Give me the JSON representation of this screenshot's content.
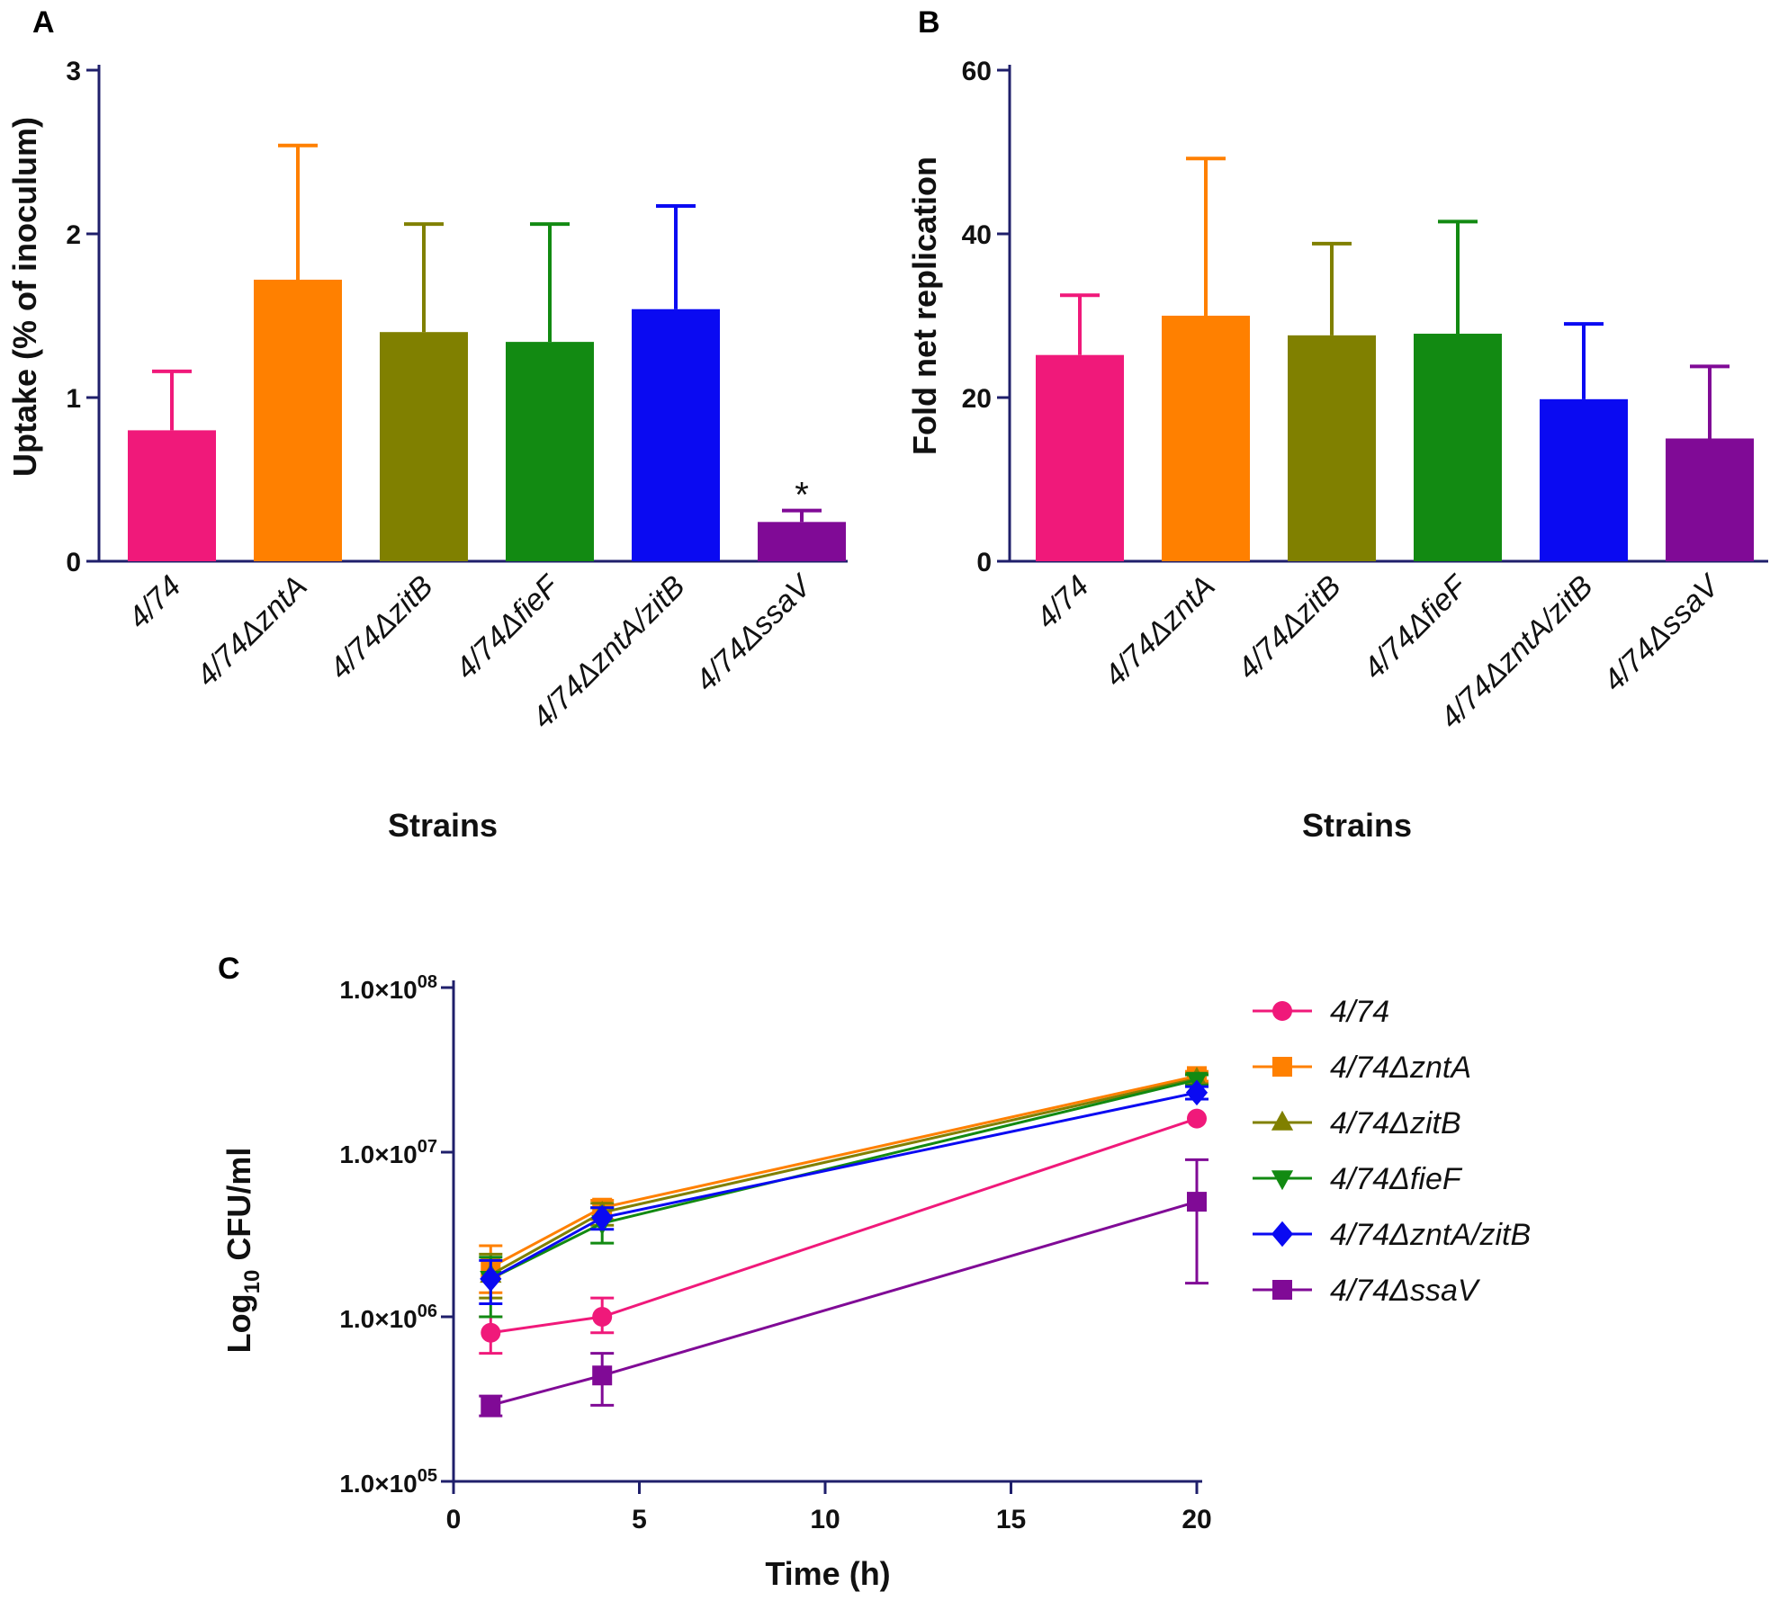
{
  "chart_data": [
    {
      "panel": "A",
      "type": "bar",
      "title": "",
      "xlabel": "Strains",
      "ylabel": "Uptake (% of inoculum)",
      "ylim": [
        0,
        3
      ],
      "yticks": [
        "0",
        "1",
        "2",
        "3"
      ],
      "categories": [
        "4/74",
        "4/74ΔzntA",
        "4/74ΔzitB",
        "4/74ΔfieF",
        "4/74ΔzntA/zitB",
        "4/74ΔssaV"
      ],
      "values": [
        0.8,
        1.72,
        1.4,
        1.34,
        1.54,
        0.24
      ],
      "errors": [
        0.36,
        0.82,
        0.66,
        0.72,
        0.63,
        0.07
      ],
      "colors": [
        "#f0197a",
        "#ff8000",
        "#808000",
        "#128a12",
        "#0a0af2",
        "#800a96"
      ],
      "annotations": [
        {
          "category": "4/74ΔssaV",
          "text": "*"
        }
      ]
    },
    {
      "panel": "B",
      "type": "bar",
      "title": "",
      "xlabel": "Strains",
      "ylabel": "Fold net replication",
      "ylim": [
        0,
        60
      ],
      "yticks": [
        "0",
        "20",
        "40",
        "60"
      ],
      "categories": [
        "4/74",
        "4/74ΔzntA",
        "4/74ΔzitB",
        "4/74ΔfieF",
        "4/74ΔzntA/zitB",
        "4/74ΔssaV"
      ],
      "values": [
        25.2,
        30.0,
        27.6,
        27.8,
        19.8,
        15.0
      ],
      "errors": [
        7.3,
        19.2,
        11.2,
        13.7,
        9.2,
        8.8
      ],
      "colors": [
        "#f0197a",
        "#ff8000",
        "#808000",
        "#128a12",
        "#0a0af2",
        "#800a96"
      ]
    },
    {
      "panel": "C",
      "type": "line",
      "title": "",
      "xlabel": "Time (h)",
      "ylabel_main": "Log",
      "ylabel_sub": "10",
      "ylabel_rest": " CFU/ml",
      "xlim": [
        0,
        20
      ],
      "xticks": [
        "0",
        "5",
        "10",
        "15",
        "20"
      ],
      "ylim_log10": [
        5,
        8
      ],
      "yticks_mantissa": [
        "1.0×10",
        "1.0×10",
        "1.0×10",
        "1.0×10"
      ],
      "yticks_exponent": [
        "05",
        "06",
        "07",
        "08"
      ],
      "x": [
        1,
        4,
        20
      ],
      "legend_position": "right",
      "series": [
        {
          "name": "4/74",
          "marker": "circle",
          "color": "#f0197a",
          "values": [
            800000,
            1000000,
            16000000
          ],
          "err_low": [
            600000,
            800000,
            16000000
          ],
          "err_high": [
            1000000,
            1300000,
            16000000
          ]
        },
        {
          "name": "4/74ΔzntA",
          "marker": "square",
          "color": "#ff8000",
          "values": [
            2000000,
            4600000,
            29000000
          ],
          "err_low": [
            1400000,
            3900000,
            27000000
          ],
          "err_high": [
            2700000,
            5100000,
            31000000
          ]
        },
        {
          "name": "4/74ΔzitB",
          "marker": "triangle-up",
          "color": "#808000",
          "values": [
            1800000,
            4300000,
            28000000
          ],
          "err_low": [
            1300000,
            3600000,
            26000000
          ],
          "err_high": [
            2400000,
            4900000,
            30000000
          ]
        },
        {
          "name": "4/74ΔfieF",
          "marker": "triangle-down",
          "color": "#128a12",
          "values": [
            1700000,
            3700000,
            27500000
          ],
          "err_low": [
            1000000,
            2800000,
            25500000
          ],
          "err_high": [
            2300000,
            4600000,
            29500000
          ]
        },
        {
          "name": "4/74ΔzntA/zitB",
          "marker": "diamond",
          "color": "#0a0af2",
          "values": [
            1700000,
            4000000,
            23000000
          ],
          "err_low": [
            1200000,
            3400000,
            21000000
          ],
          "err_high": [
            2200000,
            4600000,
            25000000
          ]
        },
        {
          "name": "4/74ΔssaV",
          "marker": "square",
          "color": "#800a96",
          "values": [
            290000,
            440000,
            5000000
          ],
          "err_low": [
            250000,
            290000,
            1600000
          ],
          "err_high": [
            330000,
            600000,
            9000000
          ]
        }
      ]
    }
  ]
}
